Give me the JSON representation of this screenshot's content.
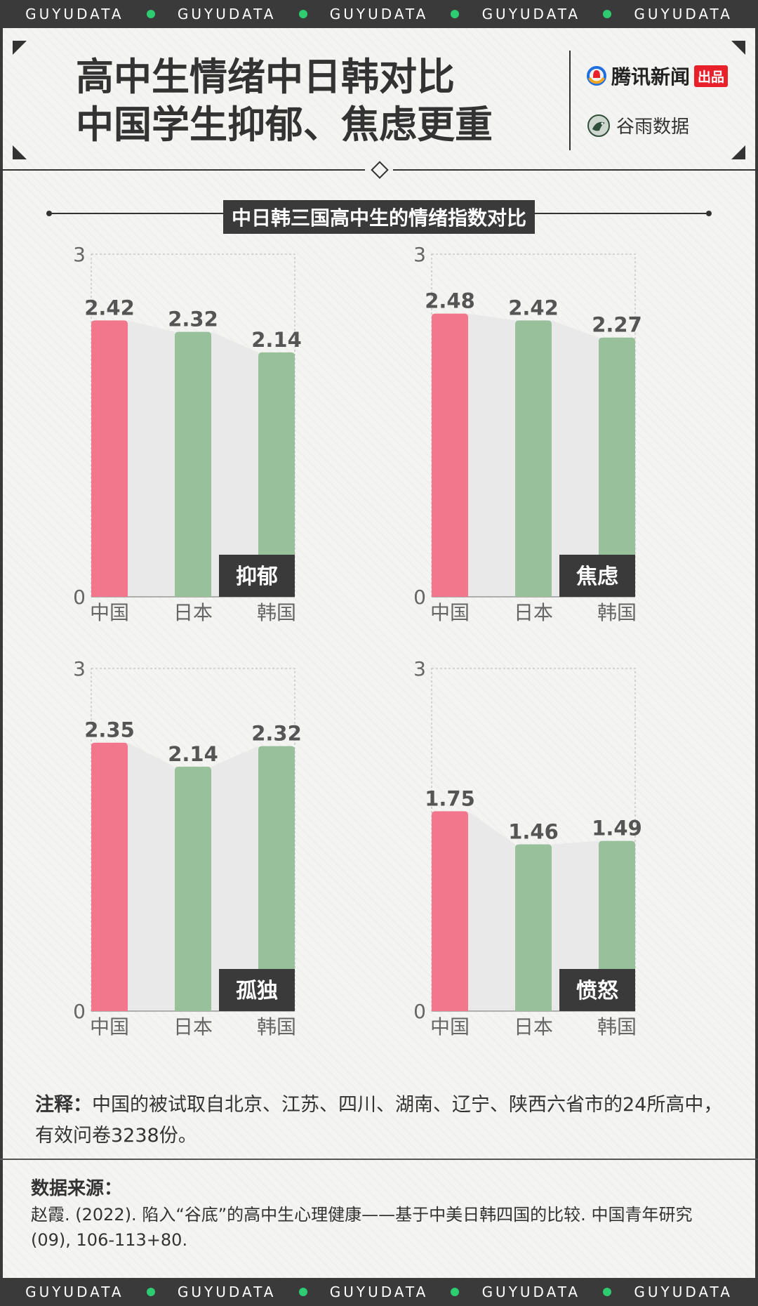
{
  "ticker": {
    "words": [
      "GUYUDATA",
      "GUYUDATA",
      "GUYUDATA",
      "GUYUDATA",
      "GUYUDATA"
    ]
  },
  "title": {
    "line1": "高中生情绪中日韩对比",
    "line2": "中国学生抑郁、焦虑更重"
  },
  "brands": {
    "tencent": "腾讯新闻",
    "tencent_tag": "出品",
    "guyu": "谷雨数据",
    "guyu_sub": "GUYUDATA"
  },
  "colors": {
    "china": "#f3778c",
    "other": "#98c19b",
    "band": "#e9e9e9",
    "label_bg": "#3a3a3a"
  },
  "chart_data": [
    {
      "type": "bar",
      "title": "抑郁",
      "categories": [
        "中国",
        "日本",
        "韩国"
      ],
      "values": [
        2.42,
        2.32,
        2.14
      ],
      "ylim": [
        0,
        3
      ],
      "yticks": [
        "0",
        "3"
      ]
    },
    {
      "type": "bar",
      "title": "焦虑",
      "categories": [
        "中国",
        "日本",
        "韩国"
      ],
      "values": [
        2.48,
        2.42,
        2.27
      ],
      "ylim": [
        0,
        3
      ],
      "yticks": [
        "0",
        "3"
      ]
    },
    {
      "type": "bar",
      "title": "孤独",
      "categories": [
        "中国",
        "日本",
        "韩国"
      ],
      "values": [
        2.35,
        2.14,
        2.32
      ],
      "ylim": [
        0,
        3
      ],
      "yticks": [
        "0",
        "3"
      ]
    },
    {
      "type": "bar",
      "title": "愤怒",
      "categories": [
        "中国",
        "日本",
        "韩国"
      ],
      "values": [
        1.75,
        1.46,
        1.49
      ],
      "ylim": [
        0,
        3
      ],
      "yticks": [
        "0",
        "3"
      ]
    }
  ],
  "chart_heading": "中日韩三国高中生的情绪指数对比",
  "note": {
    "label": "注释：",
    "text": "中国的被试取自北京、江苏、四川、湖南、辽宁、陕西六省市的24所高中，有效问卷3238份。"
  },
  "source": {
    "label": "数据来源：",
    "text": "赵霞. (2022). 陷入“谷底”的高中生心理健康——基于中美日韩四国的比较. 中国青年研究 (09), 106-113+80."
  }
}
